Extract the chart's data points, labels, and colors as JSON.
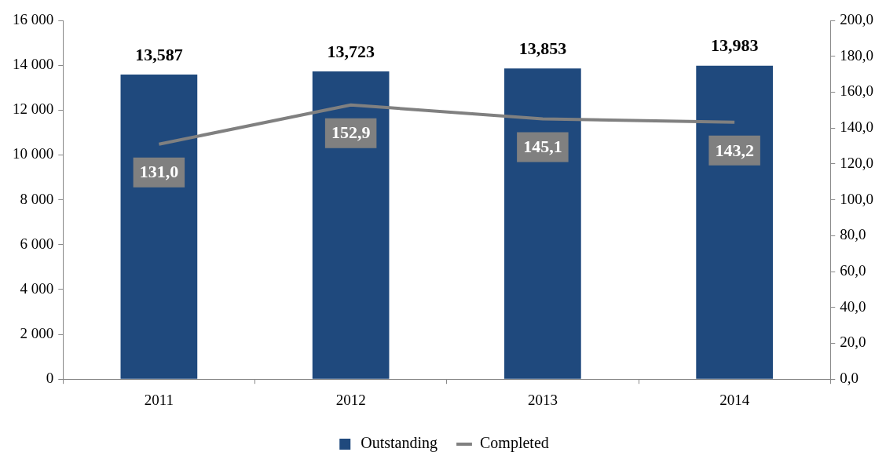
{
  "chart_data": {
    "type": "bar",
    "categories": [
      "2011",
      "2012",
      "2013",
      "2014"
    ],
    "series": [
      {
        "name": "Outstanding",
        "color": "#1f497d",
        "values": [
          13587,
          13723,
          13853,
          13983
        ],
        "value_labels": [
          "13,587",
          "13,723",
          "13,853",
          "13,983"
        ]
      },
      {
        "name": "Completed",
        "type": "line",
        "axis": "y2",
        "color": "#808080",
        "values": [
          131.0,
          152.9,
          145.1,
          143.2
        ],
        "value_labels": [
          "131,0",
          "152,9",
          "145,1",
          "143,2"
        ]
      }
    ],
    "ylim": [
      0,
      16000
    ],
    "yticks": [
      0,
      {
        "value": 2000,
        "label": "2 000"
      },
      {
        "value": 4000,
        "label": "4 000"
      },
      {
        "value": 6000,
        "label": "6 000"
      },
      {
        "value": 8000,
        "label": "8 000"
      },
      {
        "value": 10000,
        "label": "10 000"
      },
      {
        "value": 12000,
        "label": "12 000"
      },
      {
        "value": 14000,
        "label": "14 000"
      },
      {
        "value": 16000,
        "label": "16 000"
      }
    ],
    "y2lim": [
      0,
      200
    ],
    "y2ticks": [
      {
        "value": 0,
        "label": "0,0"
      },
      {
        "value": 20,
        "label": "20,0"
      },
      {
        "value": 40,
        "label": "40,0"
      },
      {
        "value": 60,
        "label": "60,0"
      },
      {
        "value": 80,
        "label": "80,0"
      },
      {
        "value": 100,
        "label": "100,0"
      },
      {
        "value": 120,
        "label": "120,0"
      },
      {
        "value": 140,
        "label": "140,0"
      },
      {
        "value": 160,
        "label": "160,0"
      },
      {
        "value": 180,
        "label": "180,0"
      },
      {
        "value": 200,
        "label": "200,0"
      }
    ],
    "grid": false,
    "legend": "bottom",
    "marker": "none",
    "line_style": "solid"
  }
}
